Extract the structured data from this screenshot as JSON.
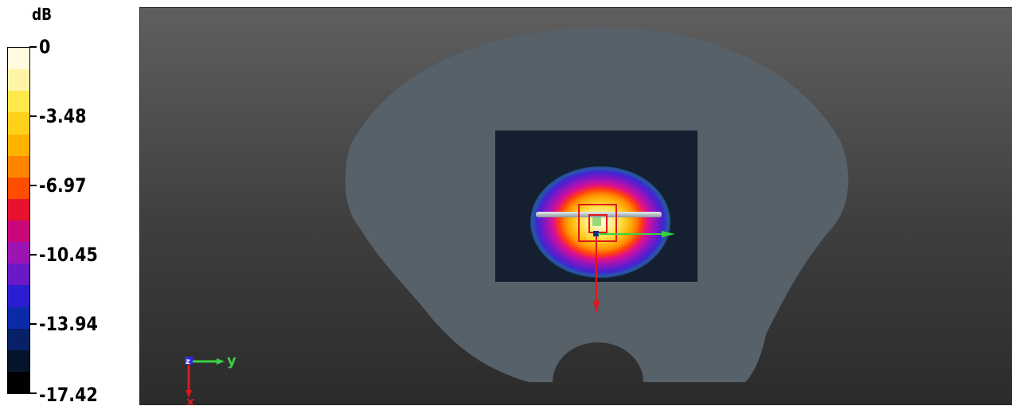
{
  "legend": {
    "unit": "dB",
    "ticks": [
      {
        "label": "0",
        "value": 0
      },
      {
        "label": "-3.48",
        "value": -3.48
      },
      {
        "label": "-6.97",
        "value": -6.97
      },
      {
        "label": "-10.45",
        "value": -10.45
      },
      {
        "label": "-13.94",
        "value": -13.94
      },
      {
        "label": "-17.42",
        "value": -17.42
      }
    ],
    "colors_top_to_bottom": [
      "#fffbdc",
      "#fff4a6",
      "#ffe94a",
      "#ffd11a",
      "#ffb300",
      "#ff8400",
      "#ff4d00",
      "#e8122e",
      "#c8077a",
      "#9c15b3",
      "#6a19c6",
      "#2b1ed0",
      "#0b2aa8",
      "#072067",
      "#06142c",
      "#000000"
    ]
  },
  "viewport": {
    "axis_triad": {
      "y_label": "y",
      "x_label": "x",
      "z_label": "z"
    }
  },
  "colors": {
    "phantom": "#56616a",
    "scan_area": "#142030",
    "accent_red": "#e01818",
    "accent_green": "#28d428"
  }
}
